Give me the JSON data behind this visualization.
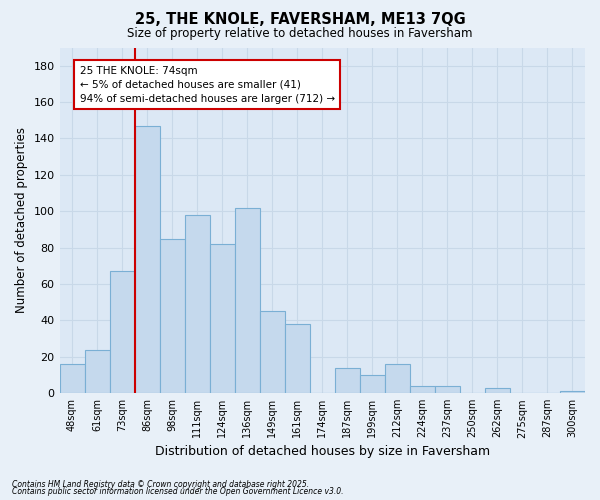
{
  "title": "25, THE KNOLE, FAVERSHAM, ME13 7QG",
  "subtitle": "Size of property relative to detached houses in Faversham",
  "xlabel": "Distribution of detached houses by size in Faversham",
  "ylabel": "Number of detached properties",
  "bar_labels": [
    "48sqm",
    "61sqm",
    "73sqm",
    "86sqm",
    "98sqm",
    "111sqm",
    "124sqm",
    "136sqm",
    "149sqm",
    "161sqm",
    "174sqm",
    "187sqm",
    "199sqm",
    "212sqm",
    "224sqm",
    "237sqm",
    "250sqm",
    "262sqm",
    "275sqm",
    "287sqm",
    "300sqm"
  ],
  "bar_values": [
    16,
    24,
    67,
    147,
    85,
    98,
    82,
    102,
    45,
    38,
    0,
    14,
    10,
    16,
    4,
    4,
    0,
    3,
    0,
    0,
    1
  ],
  "bar_color": "#c5d9ed",
  "bar_edge_color": "#7aafd4",
  "vline_color": "#cc0000",
  "vline_position": 2.5,
  "ylim": [
    0,
    190
  ],
  "yticks": [
    0,
    20,
    40,
    60,
    80,
    100,
    120,
    140,
    160,
    180
  ],
  "annotation_title": "25 THE KNOLE: 74sqm",
  "annotation_line1": "← 5% of detached houses are smaller (41)",
  "annotation_line2": "94% of semi-detached houses are larger (712) →",
  "annotation_box_color": "#ffffff",
  "annotation_box_edge": "#cc0000",
  "footnote1": "Contains HM Land Registry data © Crown copyright and database right 2025.",
  "footnote2": "Contains public sector information licensed under the Open Government Licence v3.0.",
  "bg_color": "#e8f0f8",
  "plot_bg_color": "#dce8f5",
  "grid_color": "#c8d8e8"
}
